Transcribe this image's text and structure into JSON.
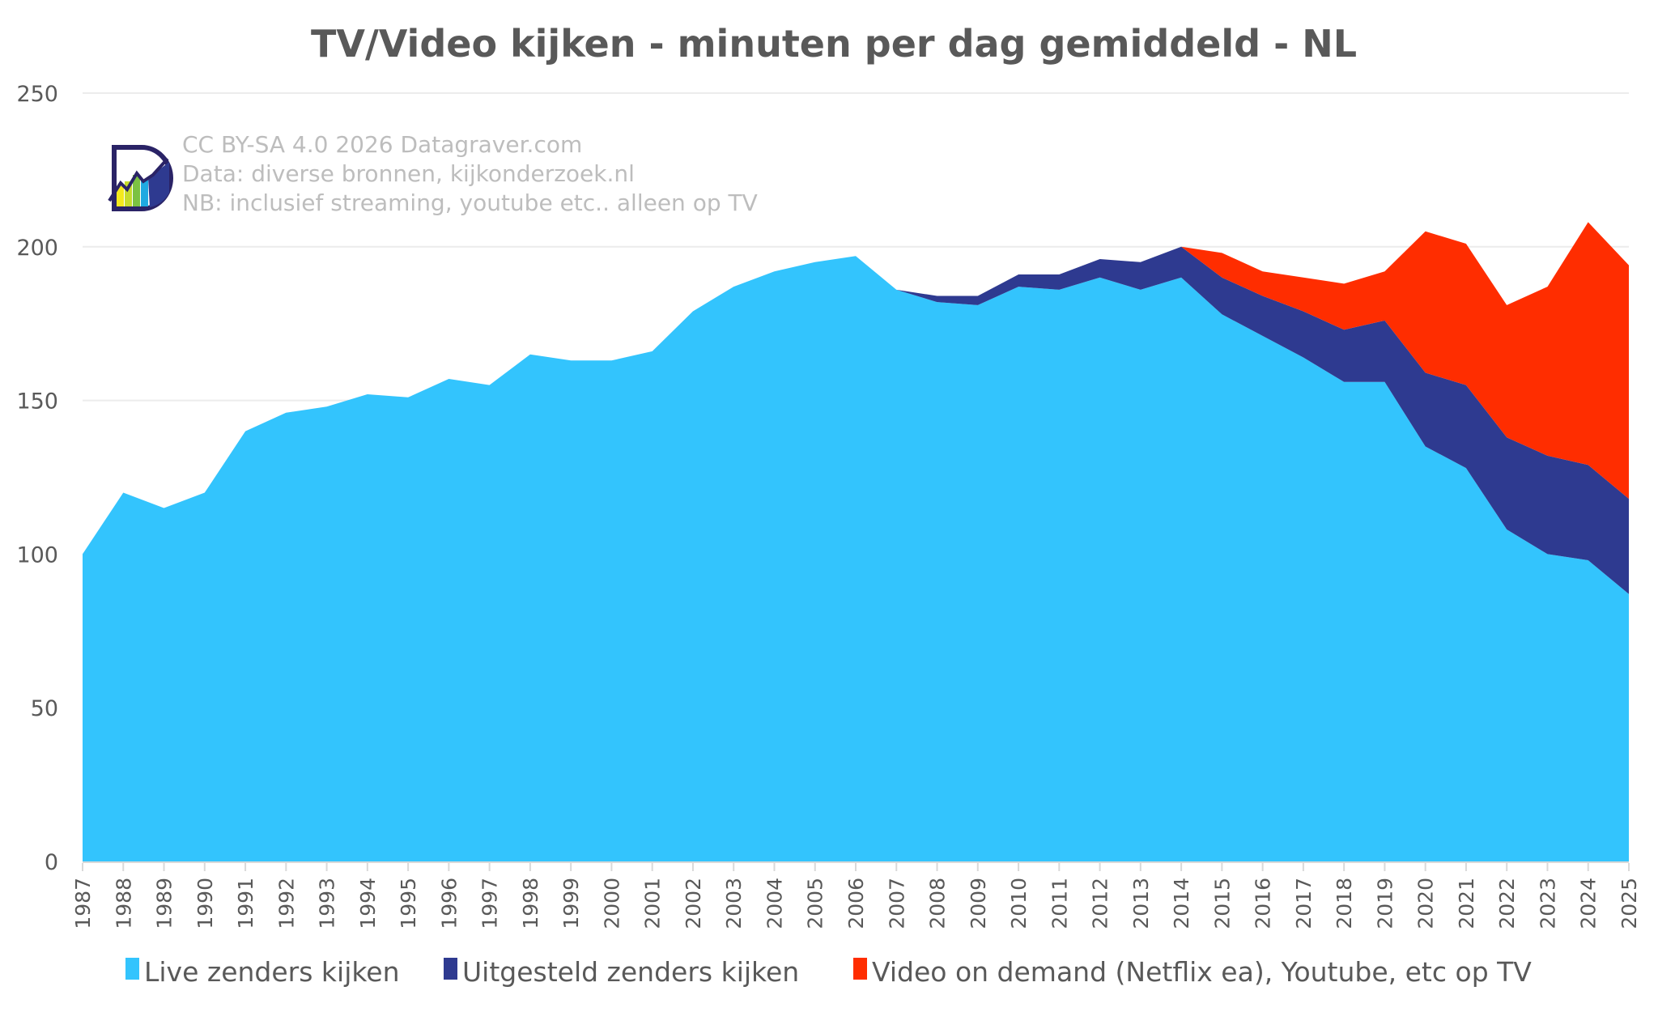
{
  "chart_data": {
    "type": "area",
    "stacked": true,
    "title": "TV/Video kijken - minuten per dag gemiddeld - NL",
    "xlabel": "",
    "ylabel": "",
    "ylim": [
      0,
      250
    ],
    "yticks": [
      0,
      50,
      100,
      150,
      200,
      250
    ],
    "grid": true,
    "legend_position": "bottom",
    "categories": [
      "1987",
      "1988",
      "1989",
      "1990",
      "1991",
      "1992",
      "1993",
      "1994",
      "1995",
      "1996",
      "1997",
      "1998",
      "1999",
      "2000",
      "2001",
      "2002",
      "2003",
      "2004",
      "2005",
      "2006",
      "2007",
      "2008",
      "2009",
      "2010",
      "2011",
      "2012",
      "2013",
      "2014",
      "2015",
      "2016",
      "2017",
      "2018",
      "2019",
      "2020",
      "2021",
      "2022",
      "2023",
      "2024",
      "2025"
    ],
    "series": [
      {
        "name": "Live zenders kijken",
        "color": "#33c4fd",
        "values": [
          100,
          120,
          115,
          120,
          140,
          146,
          148,
          152,
          151,
          157,
          155,
          165,
          163,
          163,
          166,
          179,
          187,
          192,
          195,
          197,
          186,
          182,
          181,
          187,
          186,
          190,
          186,
          190,
          178,
          171,
          164,
          156,
          156,
          135,
          128,
          108,
          100,
          98,
          87
        ]
      },
      {
        "name": "Uitgesteld zenders kijken",
        "color": "#2e3a90",
        "start": "2007",
        "values": [
          0,
          0,
          0,
          0,
          0,
          0,
          0,
          0,
          0,
          0,
          0,
          0,
          0,
          0,
          0,
          0,
          0,
          0,
          0,
          0,
          0,
          2,
          3,
          4,
          5,
          6,
          9,
          10,
          12,
          13,
          15,
          17,
          20,
          24,
          27,
          30,
          32,
          31,
          31
        ]
      },
      {
        "name": "Video on demand (Netflix ea), Youtube, etc op TV",
        "color": "#ff2d00",
        "start": "2014",
        "values": [
          0,
          0,
          0,
          0,
          0,
          0,
          0,
          0,
          0,
          0,
          0,
          0,
          0,
          0,
          0,
          0,
          0,
          0,
          0,
          0,
          0,
          0,
          0,
          0,
          0,
          0,
          0,
          0,
          8,
          8,
          11,
          15,
          16,
          46,
          46,
          43,
          55,
          79,
          76
        ]
      }
    ]
  },
  "watermark": {
    "lines": [
      "CC BY-SA 4.0 2026 Datagraver.com",
      "Data: diverse bronnen, kijkonderzoek.nl",
      "NB: inclusief streaming, youtube etc.. alleen op TV"
    ],
    "logo": "datagraver-logo-icon"
  },
  "colors": {
    "text": "#595959",
    "grid": "#ececec",
    "watermark": "#bdbdbd"
  }
}
